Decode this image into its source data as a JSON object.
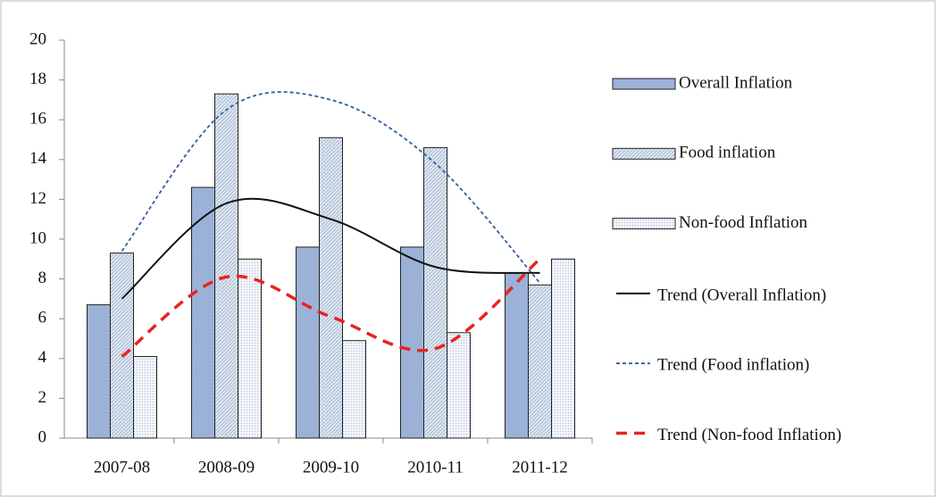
{
  "chart_data": {
    "type": "bar",
    "categories": [
      "2007-08",
      "2008-09",
      "2009-10",
      "2010-11",
      "2011-12"
    ],
    "ylim": [
      0,
      20
    ],
    "yticks": [
      0,
      2,
      4,
      6,
      8,
      10,
      12,
      14,
      16,
      18,
      20
    ],
    "legend": "right",
    "series": [
      {
        "name": "Overall Inflation",
        "type": "bar",
        "color": "#9fb5da",
        "values": [
          6.7,
          12.6,
          9.6,
          9.6,
          8.3
        ]
      },
      {
        "name": "Food inflation",
        "type": "bar",
        "color": "#c9d6e8",
        "values": [
          9.3,
          17.3,
          15.1,
          14.6,
          7.7
        ]
      },
      {
        "name": "Non-food Inflation",
        "type": "bar",
        "color": "#e6ecf4",
        "values": [
          4.1,
          9.0,
          4.9,
          5.3,
          9.0
        ]
      },
      {
        "name": "Trend (Overall Inflation)",
        "type": "line",
        "dash": "solid",
        "color": "#111111",
        "values": [
          7.0,
          11.8,
          11.0,
          8.6,
          8.3
        ]
      },
      {
        "name": "Trend (Food inflation)",
        "type": "line",
        "dash": "dotted",
        "color": "#2f5e9e",
        "values": [
          9.4,
          16.5,
          17.0,
          13.8,
          7.8
        ]
      },
      {
        "name": "Trend (Non-food Inflation)",
        "type": "line",
        "dash": "dashed",
        "color": "#e8231f",
        "values": [
          4.1,
          8.1,
          6.1,
          4.5,
          9.0
        ]
      }
    ]
  }
}
